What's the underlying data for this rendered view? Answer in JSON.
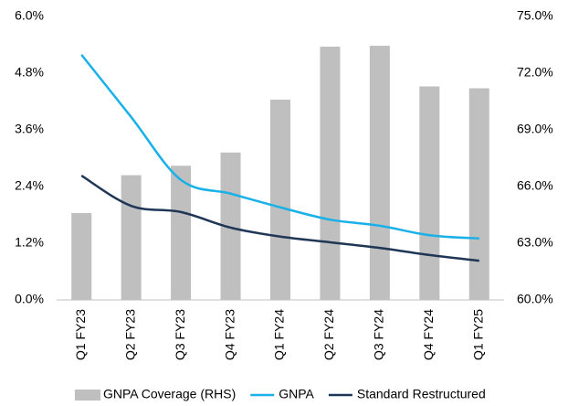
{
  "chart_data": {
    "type": "bar_line",
    "categories": [
      "Q1 FY23",
      "Q2 FY23",
      "Q3 FY23",
      "Q4 FY23",
      "Q1 FY24",
      "Q2 FY24",
      "Q3 FY24",
      "Q4 FY24",
      "Q1 FY25"
    ],
    "series": [
      {
        "name": "GNPA Coverage (RHS)",
        "type": "bar",
        "axis": "y2",
        "color": "#bfbfbf",
        "values": [
          64.6,
          66.6,
          67.1,
          67.8,
          70.6,
          73.4,
          73.45,
          71.3,
          71.2
        ]
      },
      {
        "name": "GNPA",
        "type": "line",
        "color": "#1ab0e8",
        "values": [
          5.19,
          3.87,
          2.54,
          2.25,
          1.96,
          1.7,
          1.57,
          1.37,
          1.3
        ]
      },
      {
        "name": "Standard Restructured",
        "type": "line",
        "color": "#1f3656",
        "values": [
          2.63,
          1.99,
          1.86,
          1.53,
          1.34,
          1.22,
          1.1,
          0.95,
          0.83
        ]
      }
    ],
    "ylim": [
      0,
      6
    ],
    "yticks": [
      {
        "value": 0,
        "label": "0.0%"
      },
      {
        "value": 1.2,
        "label": "1.2%"
      },
      {
        "value": 2.4,
        "label": "2.4%"
      },
      {
        "value": 3.6,
        "label": "3.6%"
      },
      {
        "value": 4.8,
        "label": "4.8%"
      },
      {
        "value": 6,
        "label": "6.0%"
      }
    ],
    "y2lim": [
      60,
      75
    ],
    "y2ticks": [
      {
        "value": 60,
        "label": "60.0%"
      },
      {
        "value": 63,
        "label": "63.0%"
      },
      {
        "value": 66,
        "label": "66.0%"
      },
      {
        "value": 69,
        "label": "69.0%"
      },
      {
        "value": 72,
        "label": "72.0%"
      },
      {
        "value": 75,
        "label": "75.0%"
      }
    ],
    "grid": false,
    "legend": "bottom"
  }
}
